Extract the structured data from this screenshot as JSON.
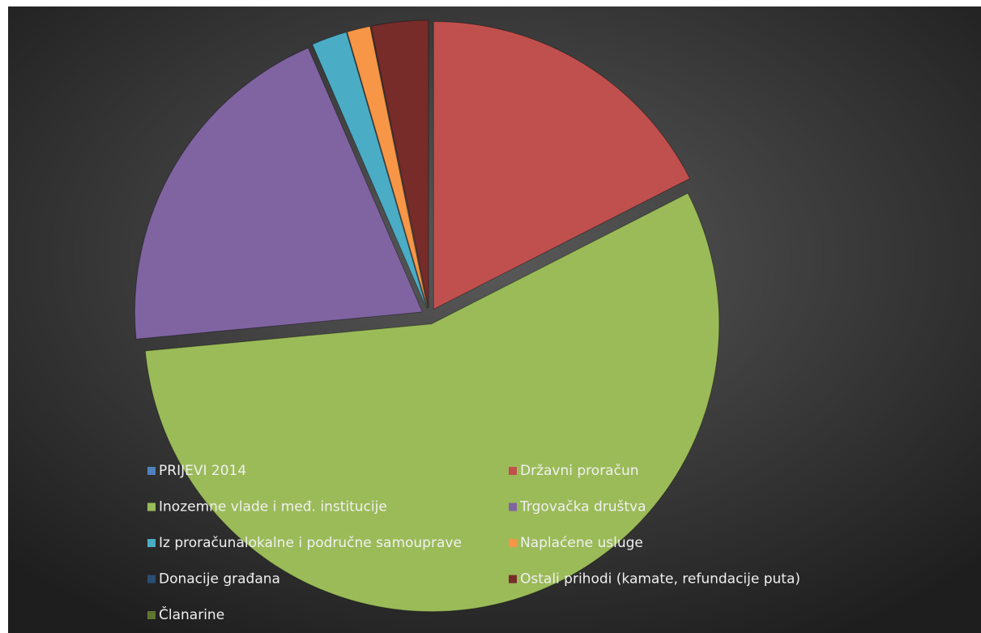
{
  "chart_data": {
    "type": "pie",
    "categories": [
      "PRIJEVI 2014",
      "Državni proračun",
      "Inozemne vlade i međ. institucije",
      "Trgovačka društva",
      "Iz proračunalokalne i područne samouprave",
      "Naplaćene usluge",
      "Donacije građana",
      "Ostali prihodi (kamate, refundacije puta)",
      "Članarine"
    ],
    "values": [
      0,
      17.5,
      56,
      20,
      2,
      1.3,
      0,
      3.2,
      0
    ],
    "colors": [
      "#4f81bd",
      "#c0504d",
      "#9bbb59",
      "#8064a2",
      "#4bacc6",
      "#f79646",
      "#2c4d75",
      "#772c2a",
      "#5f7530"
    ],
    "legend": "bottom"
  }
}
